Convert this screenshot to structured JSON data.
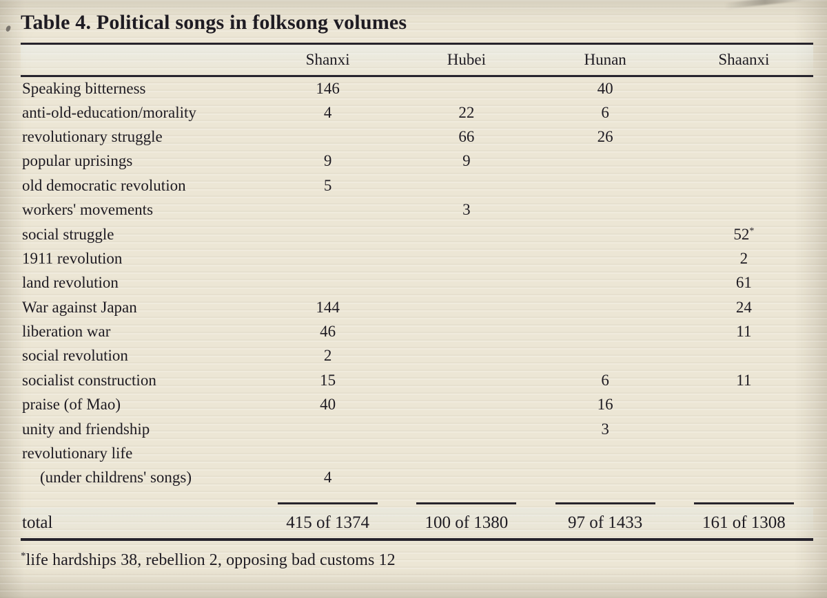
{
  "title": "Table 4. Political songs in folksong volumes",
  "colors": {
    "paper": "#ece6d5",
    "ink": "#1e1b22",
    "rule": "#26232c"
  },
  "table": {
    "column_headers": [
      "Shanxi",
      "Hubei",
      "Hunan",
      "Shaanxi"
    ],
    "rows": [
      {
        "label": "Speaking bitterness",
        "indent": false,
        "values": [
          "146",
          "",
          "40",
          ""
        ]
      },
      {
        "label": "anti-old-education/morality",
        "indent": false,
        "values": [
          "4",
          "22",
          "6",
          ""
        ]
      },
      {
        "label": "revolutionary struggle",
        "indent": false,
        "values": [
          "",
          "66",
          "26",
          ""
        ]
      },
      {
        "label": "popular uprisings",
        "indent": false,
        "values": [
          "9",
          "9",
          "",
          ""
        ]
      },
      {
        "label": "old democratic revolution",
        "indent": false,
        "values": [
          "5",
          "",
          "",
          ""
        ]
      },
      {
        "label": "workers' movements",
        "indent": false,
        "values": [
          "",
          "3",
          "",
          ""
        ]
      },
      {
        "label": "social struggle",
        "indent": false,
        "values": [
          "",
          "",
          "",
          "52*"
        ]
      },
      {
        "label": "1911 revolution",
        "indent": false,
        "values": [
          "",
          "",
          "",
          "2"
        ]
      },
      {
        "label": "land revolution",
        "indent": false,
        "values": [
          "",
          "",
          "",
          "61"
        ]
      },
      {
        "label": "War against Japan",
        "indent": false,
        "values": [
          "144",
          "",
          "",
          "24"
        ]
      },
      {
        "label": "liberation war",
        "indent": false,
        "values": [
          "46",
          "",
          "",
          "11"
        ]
      },
      {
        "label": "social revolution",
        "indent": false,
        "values": [
          "2",
          "",
          "",
          ""
        ]
      },
      {
        "label": "socialist construction",
        "indent": false,
        "values": [
          "15",
          "",
          "6",
          "11"
        ]
      },
      {
        "label": "praise (of Mao)",
        "indent": false,
        "values": [
          "40",
          "",
          "16",
          ""
        ]
      },
      {
        "label": "unity and friendship",
        "indent": false,
        "values": [
          "",
          "",
          "3",
          ""
        ]
      },
      {
        "label": "revolutionary life",
        "indent": false,
        "values": [
          "",
          "",
          "",
          ""
        ]
      },
      {
        "label": "(under childrens' songs)",
        "indent": true,
        "values": [
          "4",
          "",
          "",
          ""
        ]
      }
    ],
    "total_row": {
      "label": "total",
      "values": [
        "415 of 1374",
        "100 of 1380",
        "97 of 1433",
        "161 of 1308"
      ]
    }
  },
  "footnote": {
    "marker": "*",
    "text": "life hardships 38, rebellion 2, opposing bad customs 12"
  }
}
